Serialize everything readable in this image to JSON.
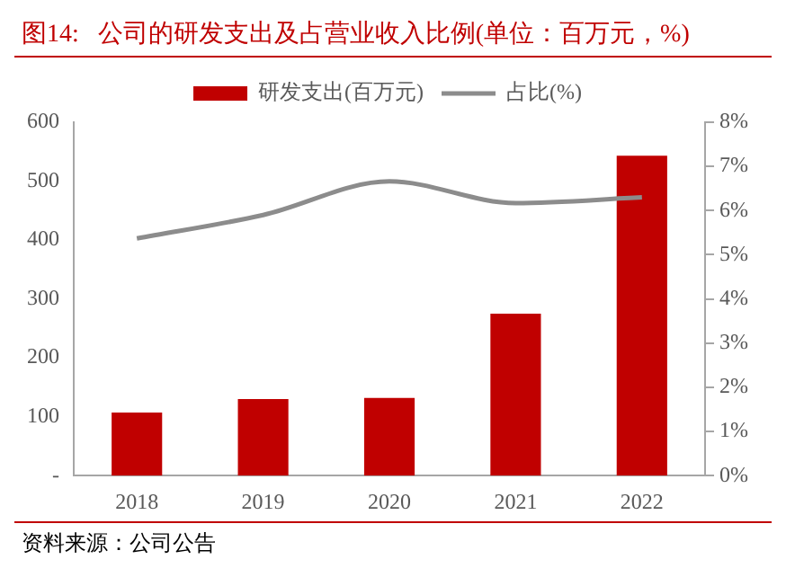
{
  "chart_data": {
    "type": "bar",
    "title": "图14:   公司的研发支出及占营业收入比例(单位：百万元，%)",
    "categories": [
      "2018",
      "2019",
      "2020",
      "2021",
      "2022"
    ],
    "series": [
      {
        "name": "研发支出(百万元)",
        "color": "#c00000",
        "values": [
          107,
          130,
          132,
          275,
          543
        ]
      },
      {
        "name": "占比(%)",
        "type": "line",
        "axis": "y2",
        "color": "#8c8c8c",
        "values": [
          5.37,
          5.9,
          6.66,
          6.17,
          6.3
        ]
      }
    ],
    "ylim": [
      0,
      600
    ],
    "yticks": [
      {
        "value": 0,
        "label": "-"
      },
      100,
      200,
      300,
      400,
      500,
      600
    ],
    "y2lim": [
      0,
      8
    ],
    "y2ticks": [
      {
        "value": 0,
        "label": "0%"
      },
      {
        "value": 1,
        "label": "1%"
      },
      {
        "value": 2,
        "label": "2%"
      },
      {
        "value": 3,
        "label": "3%"
      },
      {
        "value": 4,
        "label": "4%"
      },
      {
        "value": 5,
        "label": "5%"
      },
      {
        "value": 6,
        "label": "6%"
      },
      {
        "value": 7,
        "label": "7%"
      },
      {
        "value": 8,
        "label": "8%"
      }
    ],
    "legend": "top",
    "grid": false,
    "marker": "none",
    "annotations": [
      "资料来源：公司公告"
    ]
  }
}
